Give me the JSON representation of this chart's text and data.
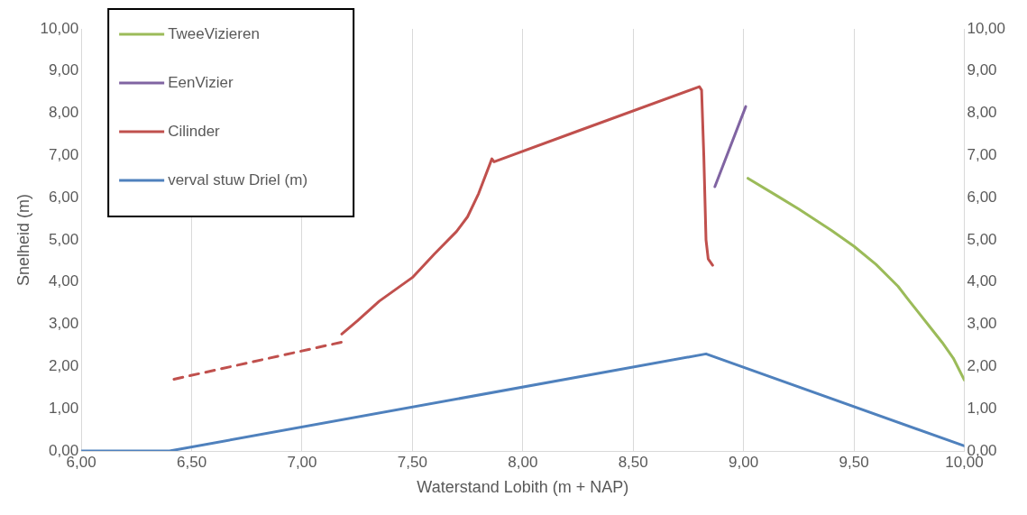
{
  "chart_data": {
    "type": "line",
    "xlabel": "Waterstand Lobith (m + NAP)",
    "ylabel": "Snelheid (m)",
    "xlim": [
      6,
      10
    ],
    "xticks": [
      {
        "value": 6,
        "label": "6,00"
      },
      {
        "value": 6.5,
        "label": "6,50"
      },
      {
        "value": 7,
        "label": "7,00"
      },
      {
        "value": 7.5,
        "label": "7,50"
      },
      {
        "value": 8,
        "label": "8,00"
      },
      {
        "value": 8.5,
        "label": "8,50"
      },
      {
        "value": 9,
        "label": "9,00"
      },
      {
        "value": 9.5,
        "label": "9,50"
      },
      {
        "value": 10,
        "label": "10,00"
      }
    ],
    "ylim": [
      0,
      10
    ],
    "yticks": [
      {
        "value": 0,
        "label": "0,00"
      },
      {
        "value": 1,
        "label": "1,00"
      },
      {
        "value": 2,
        "label": "2,00"
      },
      {
        "value": 3,
        "label": "3,00"
      },
      {
        "value": 4,
        "label": "4,00"
      },
      {
        "value": 5,
        "label": "5,00"
      },
      {
        "value": 6,
        "label": "6,00"
      },
      {
        "value": 7,
        "label": "7,00"
      },
      {
        "value": 8,
        "label": "8,00"
      },
      {
        "value": 9,
        "label": "9,00"
      },
      {
        "value": 10,
        "label": "10,00"
      }
    ],
    "y2lim": [
      0,
      10
    ],
    "y2ticks": [
      {
        "value": 0,
        "label": "0,00"
      },
      {
        "value": 1,
        "label": "1,00"
      },
      {
        "value": 2,
        "label": "2,00"
      },
      {
        "value": 3,
        "label": "3,00"
      },
      {
        "value": 4,
        "label": "4,00"
      },
      {
        "value": 5,
        "label": "5,00"
      },
      {
        "value": 6,
        "label": "6,00"
      },
      {
        "value": 7,
        "label": "7,00"
      },
      {
        "value": 8,
        "label": "8,00"
      },
      {
        "value": 9,
        "label": "9,00"
      },
      {
        "value": 10,
        "label": "10,00"
      }
    ],
    "grid": "x",
    "legend": "top left",
    "marker": "none",
    "series": [
      {
        "name": "TweeVizieren",
        "color": "#9bbb59",
        "x": [
          9.02,
          9.15,
          9.25,
          9.4,
          9.5,
          9.6,
          9.7,
          9.75,
          9.85,
          9.9,
          9.95,
          10
        ],
        "values": [
          6.46,
          6.05,
          5.73,
          5.22,
          4.85,
          4.42,
          3.9,
          3.56,
          2.9,
          2.57,
          2.2,
          1.68
        ]
      },
      {
        "name": "EenVizier",
        "color": "#8064a2",
        "x": [
          8.87,
          9.01
        ],
        "values": [
          6.26,
          8.16
        ]
      },
      {
        "name": "Cilinder",
        "color": "#c0504d",
        "x": [
          7.18,
          7.25,
          7.35,
          7.5,
          7.6,
          7.7,
          7.75,
          7.8,
          7.86,
          7.87,
          8.25,
          8.8,
          8.81,
          8.82,
          8.83,
          8.84,
          8.86
        ],
        "values": [
          2.77,
          3.08,
          3.55,
          4.11,
          4.67,
          5.2,
          5.55,
          6.1,
          6.92,
          6.85,
          7.58,
          8.63,
          8.55,
          7.0,
          5.0,
          4.55,
          4.4
        ]
      },
      {
        "color": "#c0504d",
        "line_style": "dashed",
        "x": [
          6.42,
          7.19
        ],
        "values": [
          1.7,
          2.59
        ]
      },
      {
        "name": "verval stuw Driel (m)",
        "color": "#4f81bd",
        "x": [
          6,
          6.4,
          8.83,
          10
        ],
        "values": [
          0,
          0,
          2.3,
          0.12
        ]
      }
    ]
  }
}
